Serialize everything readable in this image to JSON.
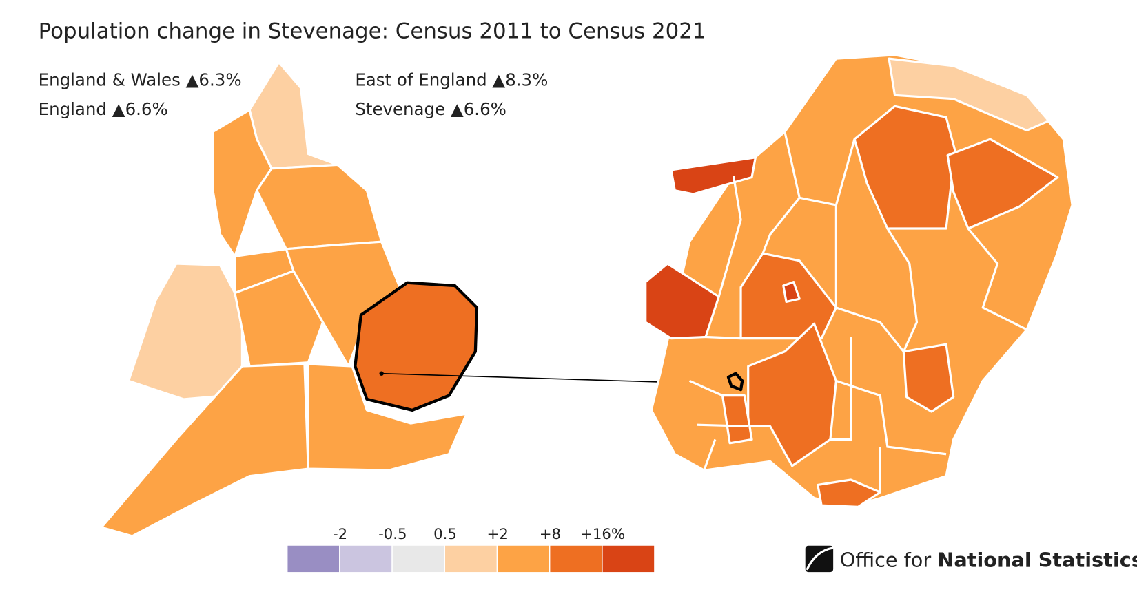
{
  "title": "Population change in Stevenage: Census 2011 to Census 2021",
  "stats": [
    "England & Wales ▲6.3%",
    "England ▲6.6%",
    "East of England ▲8.3%",
    "Stevenage ▲6.6%"
  ],
  "legend": {
    "labels": [
      "-2",
      "-0.5",
      "0.5",
      "+2",
      "+8",
      "+16%"
    ],
    "colors": [
      "#998ec3",
      "#cbc5e0",
      "#e8e8e8",
      "#fdd0a2",
      "#fda345",
      "#ee6f22",
      "#d94415"
    ]
  },
  "logo": {
    "text": "Office for",
    "bold": "National Statistics"
  }
}
